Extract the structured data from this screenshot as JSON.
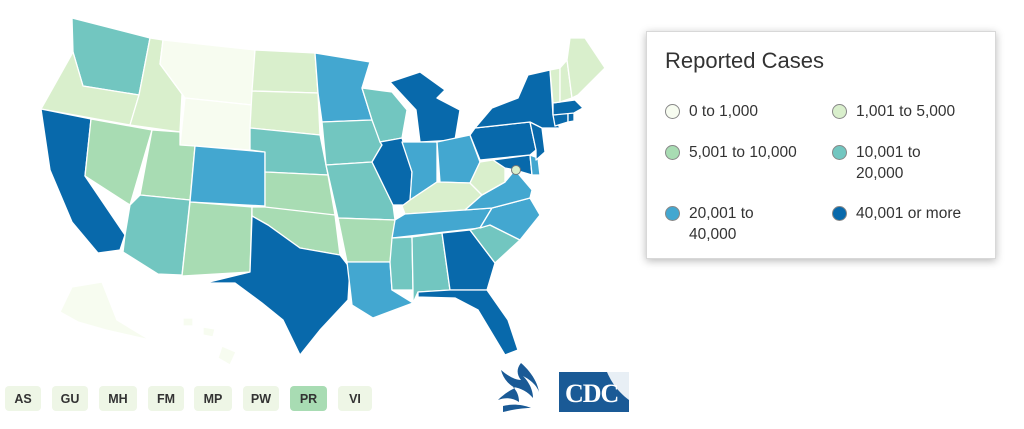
{
  "legend": {
    "title": "Reported Cases",
    "items": [
      {
        "label": "0 to 1,000",
        "color": "#f7fcf0"
      },
      {
        "label": "1,001 to 5,000",
        "color": "#d9efcc"
      },
      {
        "label": "5,001 to 10,000",
        "color": "#a8dcb3"
      },
      {
        "label": "10,001 to 20,000",
        "color": "#72c6c0"
      },
      {
        "label": "20,001 to 40,000",
        "color": "#43a7d0"
      },
      {
        "label": "40,001 or more",
        "color": "#0869ab"
      }
    ]
  },
  "territories": [
    {
      "label": "AS"
    },
    {
      "label": "GU"
    },
    {
      "label": "MH"
    },
    {
      "label": "FM"
    },
    {
      "label": "MP"
    },
    {
      "label": "PW"
    },
    {
      "label": "PR",
      "selected": true
    },
    {
      "label": "VI"
    }
  ],
  "map": {
    "states": {
      "WA": 3,
      "OR": 1,
      "CA": 5,
      "ID": 1,
      "NV": 2,
      "MT": 0,
      "WY": 0,
      "UT": 2,
      "AZ": 3,
      "CO": 4,
      "NM": 2,
      "ND": 1,
      "SD": 1,
      "NE": 3,
      "KS": 2,
      "OK": 2,
      "TX": 5,
      "MN": 4,
      "IA": 3,
      "MO": 3,
      "AR": 2,
      "LA": 4,
      "WI": 3,
      "IL": 5,
      "MI": 5,
      "IN": 4,
      "OH": 4,
      "KY": 1,
      "TN": 4,
      "MS": 3,
      "AL": 3,
      "GA": 5,
      "FL": 5,
      "SC": 3,
      "NC": 4,
      "VA": 4,
      "WV": 1,
      "MD": 5,
      "DE": 4,
      "PA": 5,
      "NJ": 5,
      "NY": 5,
      "CT": 5,
      "RI": 5,
      "MA": 5,
      "VT": 1,
      "NH": 1,
      "ME": 1,
      "AK": 0,
      "HI": 0,
      "DC": 1
    }
  }
}
